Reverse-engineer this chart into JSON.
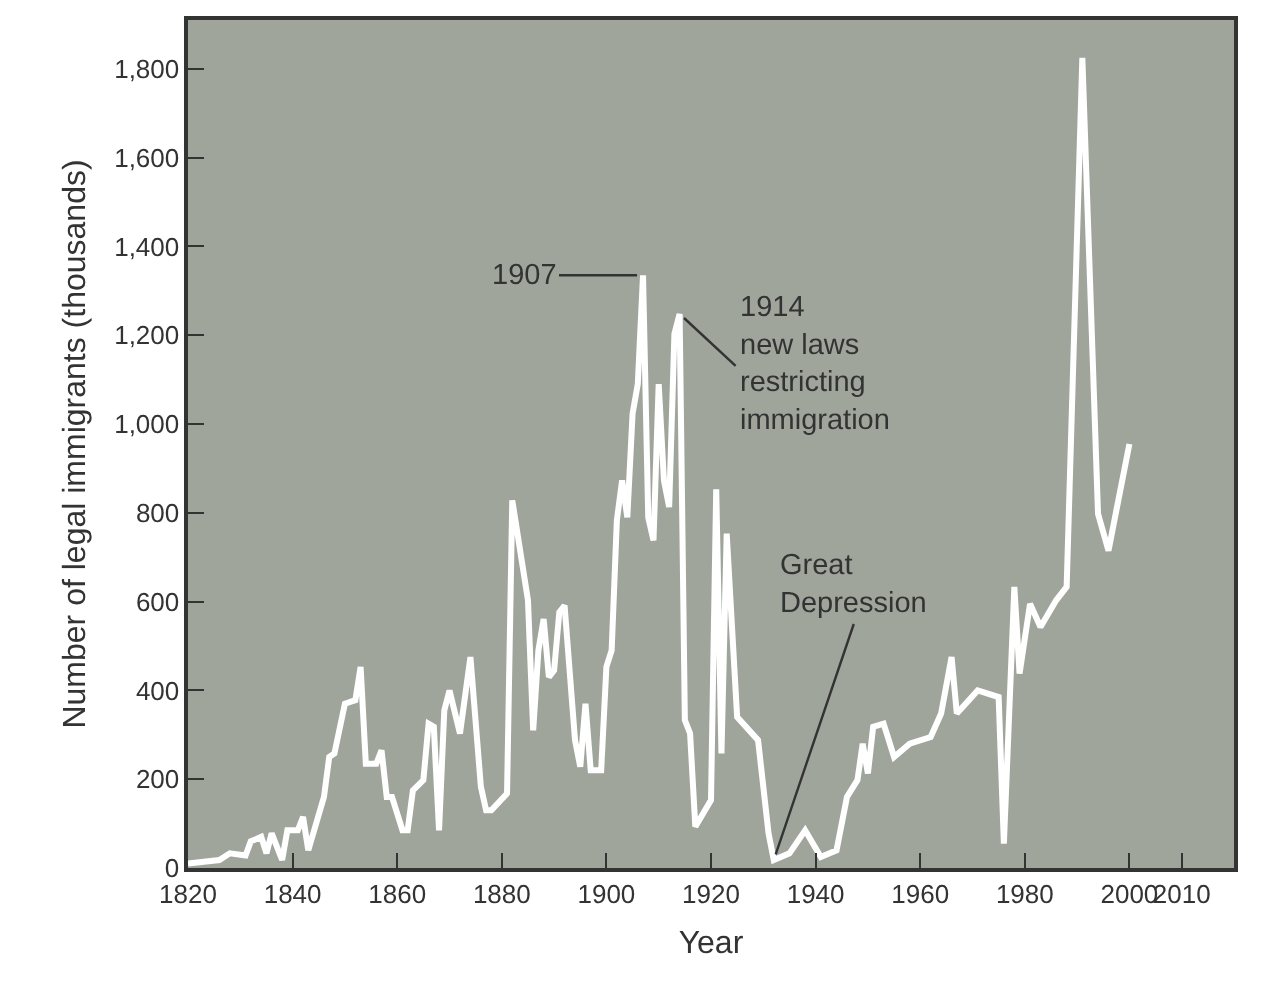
{
  "chart_data": {
    "type": "line",
    "xlabel": "Year",
    "ylabel": "Number of legal immigrants (thousands)",
    "x": [
      1820,
      1826,
      1828,
      1831,
      1832,
      1834,
      1835,
      1836,
      1838,
      1839,
      1841,
      1842,
      1843,
      1846,
      1847,
      1848,
      1850,
      1852,
      1853,
      1854,
      1856,
      1857,
      1858,
      1859,
      1861,
      1862,
      1863,
      1865,
      1866,
      1867,
      1868,
      1869,
      1870,
      1872,
      1874,
      1876,
      1877,
      1878,
      1881,
      1882,
      1885,
      1886,
      1887,
      1888,
      1889,
      1890,
      1891,
      1892,
      1894,
      1895,
      1896,
      1897,
      1899,
      1900,
      1901,
      1902,
      1903,
      1904,
      1905,
      1906,
      1907,
      1908,
      1909,
      1910,
      1911,
      1912,
      1913,
      1914,
      1915,
      1916,
      1917,
      1920,
      1921,
      1922,
      1923,
      1925,
      1929,
      1931,
      1932,
      1935,
      1938,
      1941,
      1944,
      1946,
      1948,
      1949,
      1950,
      1951,
      1953,
      1955,
      1958,
      1962,
      1964,
      1966,
      1967,
      1971,
      1975,
      1976,
      1978,
      1979,
      1981,
      1983,
      1986,
      1988,
      1991,
      1994,
      1996,
      2000
    ],
    "series": [
      {
        "color": "#ffffff",
        "values": [
          10,
          18,
          33,
          28,
          60,
          70,
          33,
          78,
          18,
          85,
          85,
          115,
          40,
          160,
          250,
          258,
          370,
          378,
          453,
          235,
          235,
          265,
          160,
          160,
          85,
          85,
          175,
          198,
          325,
          318,
          85,
          355,
          400,
          303,
          475,
          183,
          130,
          130,
          168,
          828,
          603,
          310,
          490,
          561,
          430,
          445,
          576,
          591,
          288,
          228,
          370,
          220,
          220,
          453,
          490,
          783,
          873,
          790,
          1023,
          1090,
          1335,
          790,
          738,
          1090,
          873,
          813,
          1203,
          1248,
          333,
          303,
          93,
          153,
          853,
          258,
          753,
          340,
          288,
          78,
          18,
          33,
          85,
          25,
          40,
          160,
          198,
          280,
          213,
          318,
          325,
          250,
          280,
          295,
          348,
          475,
          348,
          400,
          385,
          55,
          633,
          438,
          595,
          543,
          603,
          633,
          1825,
          798,
          715,
          955
        ]
      }
    ],
    "xlim": [
      1820,
      2020
    ],
    "xticks": [
      1820,
      1840,
      1860,
      1880,
      1900,
      1920,
      1940,
      1960,
      1980,
      2000,
      2010
    ],
    "ylim": [
      0,
      1910
    ],
    "yticks": [
      0,
      200,
      400,
      600,
      800,
      {
        "value": 1000,
        "label": "1,000"
      },
      {
        "value": 1200,
        "label": "1,200"
      },
      {
        "value": 1400,
        "label": "1,400"
      },
      {
        "value": 1600,
        "label": "1,600"
      },
      {
        "value": 1800,
        "label": "1,800"
      }
    ],
    "annotations": [
      {
        "text": "1907",
        "x": 1907,
        "y": 1335
      },
      {
        "text": "1914\nnew laws\nrestricting\nimmigration",
        "x": 1914,
        "y": 1248
      },
      {
        "text": "Great\nDepression",
        "x": 1932,
        "y": 18
      }
    ]
  }
}
